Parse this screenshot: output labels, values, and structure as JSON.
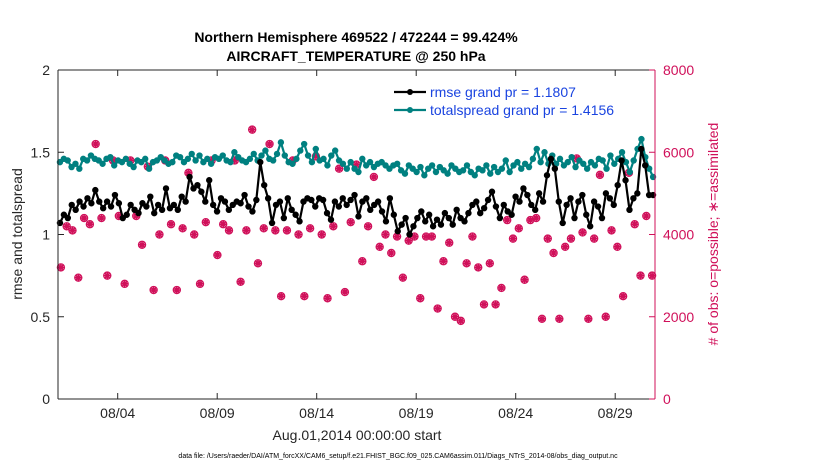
{
  "chart_data": {
    "type": "line",
    "title_line1": "Northern Hemisphere 469522 / 472244 = 99.424%",
    "title_line2": "AIRCRAFT_TEMPERATURE @ 250 hPa",
    "ylabel_left": "rmse and totalspread",
    "ylabel_right": "# of obs: o=possible; ∗=assimilated",
    "xlabel": "Aug.01,2014 00:00:00 start",
    "footer": "data file: /Users/raeder/DAI/ATM_forcXX/CAM6_setup/f.e21.FHIST_BGC.f09_025.CAM6assim.011/Diags_NTrS_2014-08/obs_diag_output.nc",
    "x_ticks": [
      "08/04",
      "08/09",
      "08/14",
      "08/19",
      "08/24",
      "08/29"
    ],
    "x_tick_values": [
      4,
      9,
      14,
      19,
      24,
      29
    ],
    "xlim": [
      1,
      31
    ],
    "ylim_left": [
      0,
      2
    ],
    "yticks_left": [
      "0",
      "0.5",
      "1",
      "1.5",
      "2"
    ],
    "ylim_right": [
      0,
      8000
    ],
    "yticks_right": [
      "0",
      "2000",
      "4000",
      "6000",
      "8000"
    ],
    "grid": false,
    "legend_position": "top-right",
    "colors": {
      "rmse": "#000000",
      "spread": "#008080",
      "obs": "#d0105a",
      "legend_text": "#1a44e0"
    },
    "series": [
      {
        "name": "rmse grand pr = 1.1807",
        "axis": "left",
        "values": [
          1.07,
          1.12,
          1.1,
          1.18,
          1.15,
          1.2,
          1.17,
          1.22,
          1.19,
          1.27,
          1.2,
          1.16,
          1.2,
          1.17,
          1.24,
          1.19,
          1.1,
          1.12,
          1.18,
          1.15,
          1.13,
          1.19,
          1.17,
          1.23,
          1.13,
          1.18,
          1.15,
          1.28,
          1.16,
          1.18,
          1.15,
          1.23,
          1.2,
          1.35,
          1.28,
          1.3,
          1.26,
          1.2,
          1.33,
          1.18,
          1.14,
          1.22,
          1.2,
          1.15,
          1.18,
          1.2,
          1.19,
          1.24,
          1.17,
          1.14,
          1.21,
          1.44,
          1.3,
          1.22,
          1.07,
          1.18,
          1.2,
          1.1,
          1.22,
          1.15,
          1.12,
          1.08,
          1.2,
          1.22,
          1.21,
          1.17,
          1.22,
          1.21,
          1.13,
          1.09,
          1.2,
          1.17,
          1.22,
          1.18,
          1.21,
          1.24,
          1.11,
          1.2,
          1.22,
          1.15,
          1.18,
          1.2,
          1.14,
          1.08,
          1.22,
          1.12,
          1.02,
          1.06,
          1.1,
          1.0,
          1.05,
          1.1,
          1.14,
          1.08,
          1.12,
          1.05,
          1.09,
          1.06,
          1.13,
          1.1,
          1.06,
          1.15,
          1.1,
          1.08,
          1.13,
          1.18,
          1.2,
          1.13,
          1.16,
          1.21,
          1.26,
          1.17,
          1.1,
          1.18,
          1.14,
          1.12,
          1.23,
          1.2,
          1.28,
          1.24,
          1.18,
          1.15,
          1.25,
          1.2,
          1.36,
          1.46,
          1.4,
          1.2,
          1.07,
          1.18,
          1.22,
          1.1,
          1.2,
          1.24,
          1.12,
          1.05,
          1.2,
          1.17,
          1.1,
          1.25,
          1.22,
          1.18,
          1.3,
          1.45,
          1.33,
          1.15,
          1.22,
          1.25,
          1.52,
          1.42,
          1.24,
          1.24
        ]
      },
      {
        "name": "totalspread grand pr = 1.4156",
        "axis": "left",
        "values": [
          1.44,
          1.46,
          1.45,
          1.41,
          1.43,
          1.4,
          1.46,
          1.45,
          1.48,
          1.46,
          1.45,
          1.43,
          1.46,
          1.47,
          1.42,
          1.45,
          1.44,
          1.46,
          1.43,
          1.41,
          1.45,
          1.44,
          1.46,
          1.4,
          1.44,
          1.45,
          1.47,
          1.45,
          1.43,
          1.44,
          1.48,
          1.47,
          1.44,
          1.46,
          1.49,
          1.45,
          1.48,
          1.44,
          1.46,
          1.43,
          1.47,
          1.46,
          1.48,
          1.45,
          1.44,
          1.5,
          1.47,
          1.45,
          1.44,
          1.46,
          1.49,
          1.45,
          1.48,
          1.51,
          1.46,
          1.45,
          1.49,
          1.56,
          1.48,
          1.44,
          1.43,
          1.46,
          1.51,
          1.55,
          1.48,
          1.44,
          1.52,
          1.45,
          1.46,
          1.42,
          1.48,
          1.51,
          1.45,
          1.43,
          1.4,
          1.44,
          1.4,
          1.38,
          1.46,
          1.42,
          1.44,
          1.41,
          1.43,
          1.44,
          1.42,
          1.4,
          1.42,
          1.43,
          1.39,
          1.37,
          1.42,
          1.4,
          1.38,
          1.41,
          1.36,
          1.4,
          1.42,
          1.38,
          1.41,
          1.39,
          1.37,
          1.42,
          1.4,
          1.38,
          1.39,
          1.42,
          1.38,
          1.36,
          1.4,
          1.39,
          1.42,
          1.37,
          1.41,
          1.38,
          1.4,
          1.45,
          1.38,
          1.42,
          1.44,
          1.4,
          1.43,
          1.41,
          1.46,
          1.52,
          1.44,
          1.5,
          1.43,
          1.48,
          1.43,
          1.46,
          1.42,
          1.44,
          1.47,
          1.41,
          1.45,
          1.43,
          1.4,
          1.44,
          1.42,
          1.46,
          1.45,
          1.4,
          1.48,
          1.43,
          1.46,
          1.5,
          1.44,
          1.38,
          1.45,
          1.52,
          1.58,
          1.47,
          1.4,
          1.35
        ]
      },
      {
        "name": "observations possible",
        "axis": "right",
        "marker": "circle",
        "values": [
          3200,
          4200,
          4100,
          2950,
          4400,
          4250,
          6200,
          4400,
          3000,
          5800,
          4450,
          2800,
          5800,
          4450,
          3750,
          5650,
          2650,
          4000,
          5800,
          4250,
          2650,
          4150,
          5500,
          4000,
          2800,
          4300,
          5800,
          3500,
          4250,
          4100,
          5800,
          2850,
          4100,
          6550,
          3300,
          4150,
          6200,
          4100,
          2500,
          4100,
          5800,
          4000,
          2500,
          4150,
          5900,
          4000,
          2450,
          4200,
          5600,
          2600,
          4300,
          5700,
          3350,
          4200,
          5400,
          3700,
          4000,
          3550,
          3950,
          2950,
          3850,
          3950,
          2450,
          3950,
          3950,
          2200,
          3350,
          3800,
          2000,
          1900,
          3300,
          3950,
          3200,
          2300,
          3300,
          2300,
          2700,
          4350,
          3900,
          4150,
          2900,
          4350,
          4400,
          1950,
          3900,
          3550,
          1950,
          3700,
          3900,
          5850,
          4050,
          1950,
          3900,
          5450,
          2000,
          4100,
          3700,
          2500,
          5500,
          4250,
          3000,
          4450,
          3000
        ]
      },
      {
        "name": "observations assimilated",
        "axis": "right",
        "marker": "star",
        "values": [
          3200,
          4200,
          4100,
          2950,
          4400,
          4250,
          6200,
          4400,
          3000,
          5800,
          4450,
          2800,
          5800,
          4450,
          3750,
          5650,
          2650,
          4000,
          5800,
          4250,
          2650,
          4150,
          5500,
          4000,
          2800,
          4300,
          5800,
          3500,
          4250,
          4100,
          5800,
          2850,
          4100,
          6550,
          3300,
          4150,
          6200,
          4100,
          2500,
          4100,
          5800,
          4000,
          2500,
          4150,
          5900,
          4000,
          2450,
          4200,
          5600,
          2600,
          4300,
          5700,
          3350,
          4200,
          5400,
          3700,
          4000,
          3550,
          3950,
          2950,
          3850,
          3950,
          2450,
          3950,
          3950,
          2200,
          3350,
          3800,
          2000,
          1900,
          3300,
          3950,
          3200,
          2300,
          3300,
          2300,
          2700,
          4350,
          3900,
          4150,
          2900,
          4350,
          4400,
          1950,
          3900,
          3550,
          1950,
          3700,
          3900,
          5850,
          4050,
          1950,
          3900,
          5450,
          2000,
          4100,
          3700,
          2500,
          5500,
          4250,
          3000,
          4450,
          3000
        ]
      }
    ]
  }
}
